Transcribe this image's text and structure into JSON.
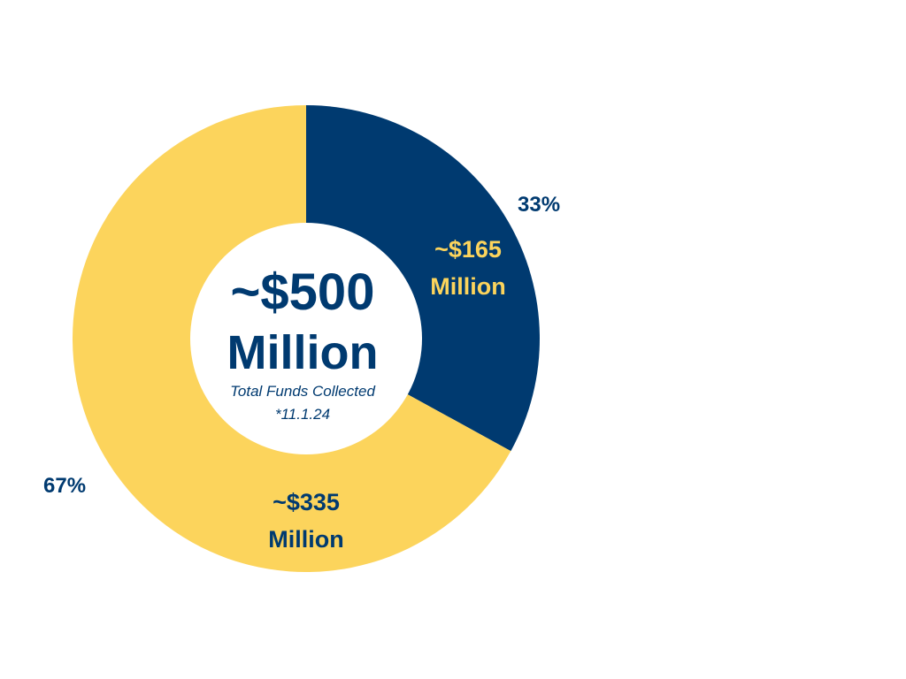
{
  "colors": {
    "navy": "#003A70",
    "gold": "#FCD45C",
    "background": "#FFFFFF"
  },
  "center": {
    "amount": "~$500",
    "unit": "Million",
    "caption": "Total Funds Collected",
    "date": "*11.1.24"
  },
  "chart_data": {
    "type": "pie",
    "style": "donut",
    "total": 500,
    "start_angle_deg": 0,
    "direction": "clockwise",
    "slices": [
      {
        "value": 165,
        "percent": 33,
        "percent_label": "33%",
        "amount_label": "~$165",
        "unit_label": "Million",
        "fill": "#003A70",
        "text_color": "#FCD45C",
        "percent_color": "#003A70"
      },
      {
        "value": 335,
        "percent": 67,
        "percent_label": "67%",
        "amount_label": "~$335",
        "unit_label": "Million",
        "fill": "#FCD45C",
        "text_color": "#003A70",
        "percent_color": "#003A70"
      }
    ]
  }
}
